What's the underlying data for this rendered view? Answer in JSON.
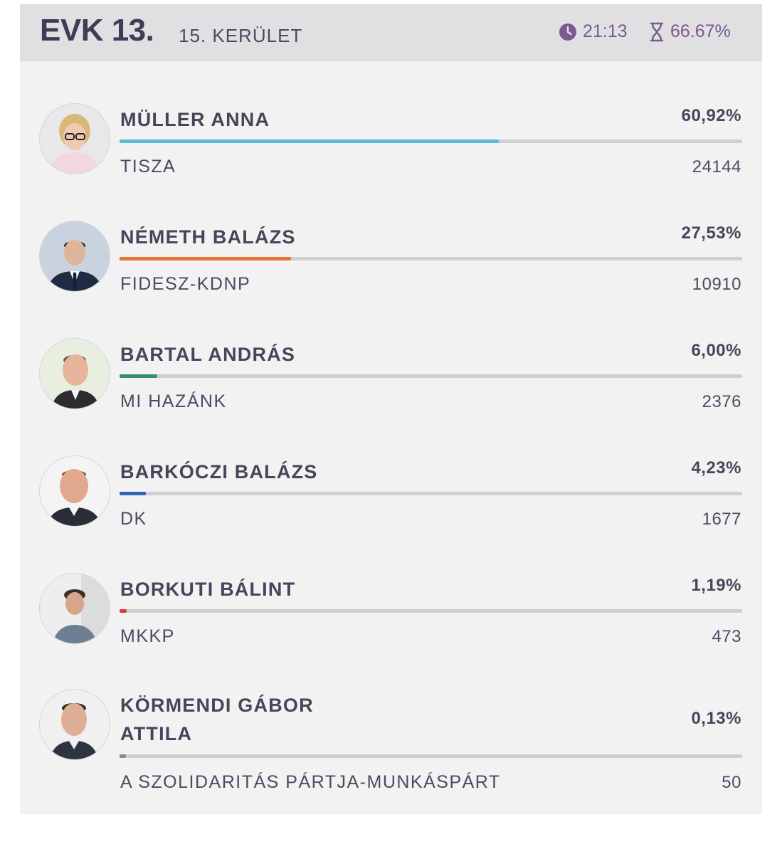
{
  "header": {
    "evk": "EVK 13.",
    "district": "15. KERÜLET",
    "time": "21:13",
    "processed": "66.67%",
    "accent": "#7a5a8f"
  },
  "candidates": [
    {
      "name": "MÜLLER ANNA",
      "party": "TISZA",
      "percent_label": "60,92%",
      "percent": 60.92,
      "votes": "24144",
      "color": "#5bbcd6"
    },
    {
      "name": "NÉMETH BALÁZS",
      "party": "FIDESZ-KDNP",
      "percent_label": "27,53%",
      "percent": 27.53,
      "votes": "10910",
      "color": "#ec7434"
    },
    {
      "name": "BARTAL ANDRÁS",
      "party": "MI HAZÁNK",
      "percent_label": "6,00%",
      "percent": 6.0,
      "votes": "2376",
      "color": "#3b8a78"
    },
    {
      "name": "BARKÓCZI BALÁZS",
      "party": "DK",
      "percent_label": "4,23%",
      "percent": 4.23,
      "votes": "1677",
      "color": "#2f64b4"
    },
    {
      "name": "BORKUTI BÁLINT",
      "party": "MKKP",
      "percent_label": "1,19%",
      "percent": 1.19,
      "votes": "473",
      "color": "#e03a3a"
    },
    {
      "name": "KÖRMENDI GÁBOR ATTILA",
      "party": "A SZOLIDARITÁS PÁRTJA-MUNKÁSPÁRT",
      "percent_label": "0,13%",
      "percent": 0.13,
      "votes": "50",
      "color": "#888888"
    }
  ]
}
